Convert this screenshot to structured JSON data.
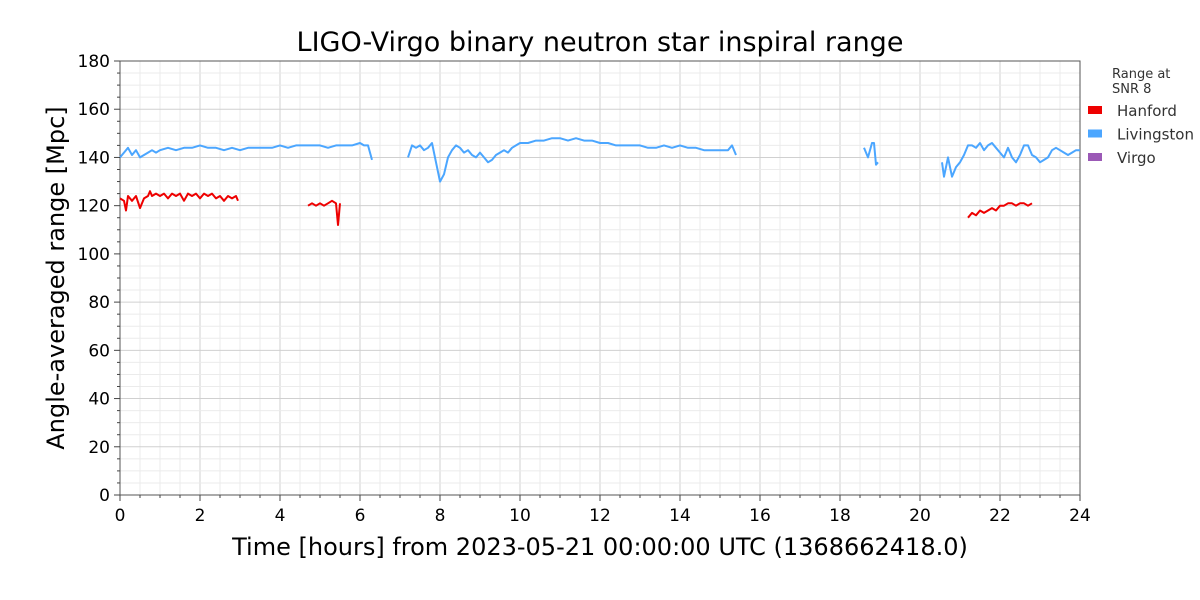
{
  "chart_data": {
    "type": "line",
    "title": "LIGO-Virgo binary neutron star inspiral range",
    "xlabel": "Time [hours] from 2023-05-21 00:00:00 UTC (1368662418.0)",
    "ylabel": "Angle-averaged range [Mpc]",
    "xlim": [
      0,
      24
    ],
    "ylim": [
      0,
      180
    ],
    "xticks": [
      "0",
      "2",
      "4",
      "6",
      "8",
      "10",
      "12",
      "14",
      "16",
      "18",
      "20",
      "22",
      "24"
    ],
    "yticks": [
      "0",
      "20",
      "40",
      "60",
      "80",
      "100",
      "120",
      "140",
      "160",
      "180"
    ],
    "grid": true,
    "legend": {
      "title_lines": [
        "Range at",
        "SNR 8"
      ],
      "placement": "outside-right"
    },
    "series": [
      {
        "name": "Hanford",
        "color": "#ee0000",
        "segments": [
          [
            [
              0.0,
              123
            ],
            [
              0.1,
              122
            ],
            [
              0.15,
              118
            ],
            [
              0.2,
              124
            ],
            [
              0.3,
              122
            ],
            [
              0.4,
              124
            ],
            [
              0.5,
              119
            ],
            [
              0.6,
              123
            ],
            [
              0.7,
              124
            ],
            [
              0.75,
              126
            ],
            [
              0.8,
              124
            ],
            [
              0.9,
              125
            ],
            [
              1.0,
              124
            ],
            [
              1.1,
              125
            ],
            [
              1.2,
              123
            ],
            [
              1.3,
              125
            ],
            [
              1.4,
              124
            ],
            [
              1.5,
              125
            ],
            [
              1.6,
              122
            ],
            [
              1.7,
              125
            ],
            [
              1.8,
              124
            ],
            [
              1.9,
              125
            ],
            [
              2.0,
              123
            ],
            [
              2.1,
              125
            ],
            [
              2.2,
              124
            ],
            [
              2.3,
              125
            ],
            [
              2.4,
              123
            ],
            [
              2.5,
              124
            ],
            [
              2.6,
              122
            ],
            [
              2.7,
              124
            ],
            [
              2.8,
              123
            ],
            [
              2.9,
              124
            ],
            [
              2.95,
              122
            ]
          ],
          [
            [
              4.7,
              120
            ],
            [
              4.8,
              121
            ],
            [
              4.9,
              120
            ],
            [
              5.0,
              121
            ],
            [
              5.1,
              120
            ],
            [
              5.2,
              121
            ],
            [
              5.3,
              122
            ],
            [
              5.4,
              121
            ],
            [
              5.45,
              112
            ],
            [
              5.5,
              121
            ]
          ],
          [
            [
              21.2,
              115
            ],
            [
              21.3,
              117
            ],
            [
              21.4,
              116
            ],
            [
              21.5,
              118
            ],
            [
              21.6,
              117
            ],
            [
              21.7,
              118
            ],
            [
              21.8,
              119
            ],
            [
              21.9,
              118
            ],
            [
              22.0,
              120
            ],
            [
              22.1,
              120
            ],
            [
              22.2,
              121
            ],
            [
              22.3,
              121
            ],
            [
              22.4,
              120
            ],
            [
              22.5,
              121
            ],
            [
              22.6,
              121
            ],
            [
              22.7,
              120
            ],
            [
              22.8,
              121
            ]
          ]
        ]
      },
      {
        "name": "Livingston",
        "color": "#4ba6ff",
        "segments": [
          [
            [
              0.0,
              140
            ],
            [
              0.1,
              142
            ],
            [
              0.2,
              144
            ],
            [
              0.3,
              141
            ],
            [
              0.4,
              143
            ],
            [
              0.5,
              140
            ],
            [
              0.6,
              141
            ],
            [
              0.7,
              142
            ],
            [
              0.8,
              143
            ],
            [
              0.9,
              142
            ],
            [
              1.0,
              143
            ],
            [
              1.2,
              144
            ],
            [
              1.4,
              143
            ],
            [
              1.6,
              144
            ],
            [
              1.8,
              144
            ],
            [
              2.0,
              145
            ],
            [
              2.2,
              144
            ],
            [
              2.4,
              144
            ],
            [
              2.6,
              143
            ],
            [
              2.8,
              144
            ],
            [
              3.0,
              143
            ],
            [
              3.2,
              144
            ],
            [
              3.4,
              144
            ],
            [
              3.6,
              144
            ],
            [
              3.8,
              144
            ],
            [
              4.0,
              145
            ],
            [
              4.2,
              144
            ],
            [
              4.4,
              145
            ],
            [
              4.6,
              145
            ],
            [
              4.8,
              145
            ],
            [
              5.0,
              145
            ],
            [
              5.2,
              144
            ],
            [
              5.4,
              145
            ],
            [
              5.6,
              145
            ],
            [
              5.8,
              145
            ],
            [
              6.0,
              146
            ],
            [
              6.1,
              145
            ],
            [
              6.2,
              145
            ],
            [
              6.3,
              139
            ]
          ],
          [
            [
              7.2,
              140
            ],
            [
              7.3,
              145
            ],
            [
              7.4,
              144
            ],
            [
              7.5,
              145
            ],
            [
              7.6,
              143
            ],
            [
              7.7,
              144
            ],
            [
              7.8,
              146
            ],
            [
              7.9,
              138
            ],
            [
              8.0,
              130
            ],
            [
              8.1,
              133
            ],
            [
              8.2,
              140
            ],
            [
              8.3,
              143
            ],
            [
              8.4,
              145
            ],
            [
              8.5,
              144
            ],
            [
              8.6,
              142
            ],
            [
              8.7,
              143
            ],
            [
              8.8,
              141
            ],
            [
              8.9,
              140
            ],
            [
              9.0,
              142
            ],
            [
              9.1,
              140
            ],
            [
              9.2,
              138
            ],
            [
              9.3,
              139
            ],
            [
              9.4,
              141
            ],
            [
              9.5,
              142
            ],
            [
              9.6,
              143
            ],
            [
              9.7,
              142
            ],
            [
              9.8,
              144
            ],
            [
              9.9,
              145
            ],
            [
              10.0,
              146
            ],
            [
              10.2,
              146
            ],
            [
              10.4,
              147
            ],
            [
              10.6,
              147
            ],
            [
              10.8,
              148
            ],
            [
              11.0,
              148
            ],
            [
              11.2,
              147
            ],
            [
              11.4,
              148
            ],
            [
              11.6,
              147
            ],
            [
              11.8,
              147
            ],
            [
              12.0,
              146
            ],
            [
              12.2,
              146
            ],
            [
              12.4,
              145
            ],
            [
              12.6,
              145
            ],
            [
              12.8,
              145
            ],
            [
              13.0,
              145
            ],
            [
              13.2,
              144
            ],
            [
              13.4,
              144
            ],
            [
              13.6,
              145
            ],
            [
              13.8,
              144
            ],
            [
              14.0,
              145
            ],
            [
              14.2,
              144
            ],
            [
              14.4,
              144
            ],
            [
              14.6,
              143
            ],
            [
              14.8,
              143
            ],
            [
              15.0,
              143
            ],
            [
              15.2,
              143
            ],
            [
              15.3,
              145
            ],
            [
              15.4,
              141
            ]
          ],
          [
            [
              18.6,
              144
            ],
            [
              18.7,
              140
            ],
            [
              18.8,
              146
            ],
            [
              18.85,
              146
            ],
            [
              18.9,
              137
            ],
            [
              18.95,
              138
            ]
          ],
          [
            [
              20.55,
              138
            ],
            [
              20.6,
              132
            ],
            [
              20.7,
              140
            ],
            [
              20.8,
              132
            ],
            [
              20.9,
              136
            ],
            [
              21.0,
              138
            ],
            [
              21.1,
              141
            ],
            [
              21.2,
              145
            ],
            [
              21.3,
              145
            ],
            [
              21.4,
              144
            ],
            [
              21.5,
              146
            ],
            [
              21.6,
              143
            ],
            [
              21.7,
              145
            ],
            [
              21.8,
              146
            ],
            [
              21.9,
              144
            ],
            [
              22.0,
              142
            ],
            [
              22.1,
              140
            ],
            [
              22.2,
              144
            ],
            [
              22.3,
              140
            ],
            [
              22.4,
              138
            ],
            [
              22.5,
              141
            ],
            [
              22.6,
              145
            ],
            [
              22.7,
              145
            ],
            [
              22.8,
              141
            ],
            [
              22.9,
              140
            ],
            [
              23.0,
              138
            ],
            [
              23.1,
              139
            ],
            [
              23.2,
              140
            ],
            [
              23.3,
              143
            ],
            [
              23.4,
              144
            ],
            [
              23.5,
              143
            ],
            [
              23.6,
              142
            ],
            [
              23.7,
              141
            ],
            [
              23.8,
              142
            ],
            [
              23.9,
              143
            ],
            [
              24.0,
              143
            ]
          ]
        ]
      },
      {
        "name": "Virgo",
        "color": "#9b59b6",
        "segments": []
      }
    ]
  }
}
